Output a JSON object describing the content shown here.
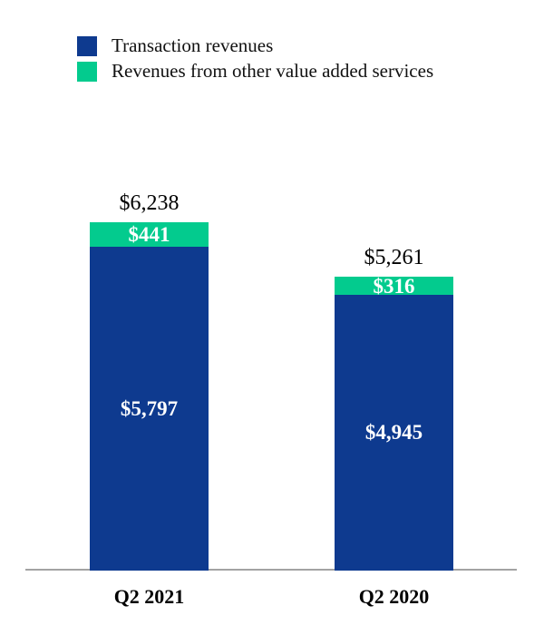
{
  "page": {
    "background_color": "#ffffff"
  },
  "chart_data": {
    "type": "bar",
    "stacked": true,
    "title": "",
    "xlabel": "",
    "ylabel": "",
    "categories": [
      "Q2 2021",
      "Q2 2020"
    ],
    "series": [
      {
        "name": "Transaction revenues",
        "color": "#0e3a8f",
        "values": [
          5797,
          4945
        ],
        "value_labels": [
          "$5,797",
          "$4,945"
        ]
      },
      {
        "name": "Revenues from other value added services",
        "color": "#03cb8e",
        "values": [
          441,
          316
        ],
        "value_labels": [
          "$441",
          "$316"
        ]
      }
    ],
    "totals": [
      6238,
      5261
    ],
    "total_labels": [
      "$6,238",
      "$5,261"
    ],
    "legend_position": "top-left",
    "grid": false,
    "y_axis_visible": false,
    "ylim": [
      0,
      6400
    ],
    "axis_line_color": "#a3a3a3",
    "segment_label_color": "#ffffff",
    "total_label_color": "#000000"
  }
}
